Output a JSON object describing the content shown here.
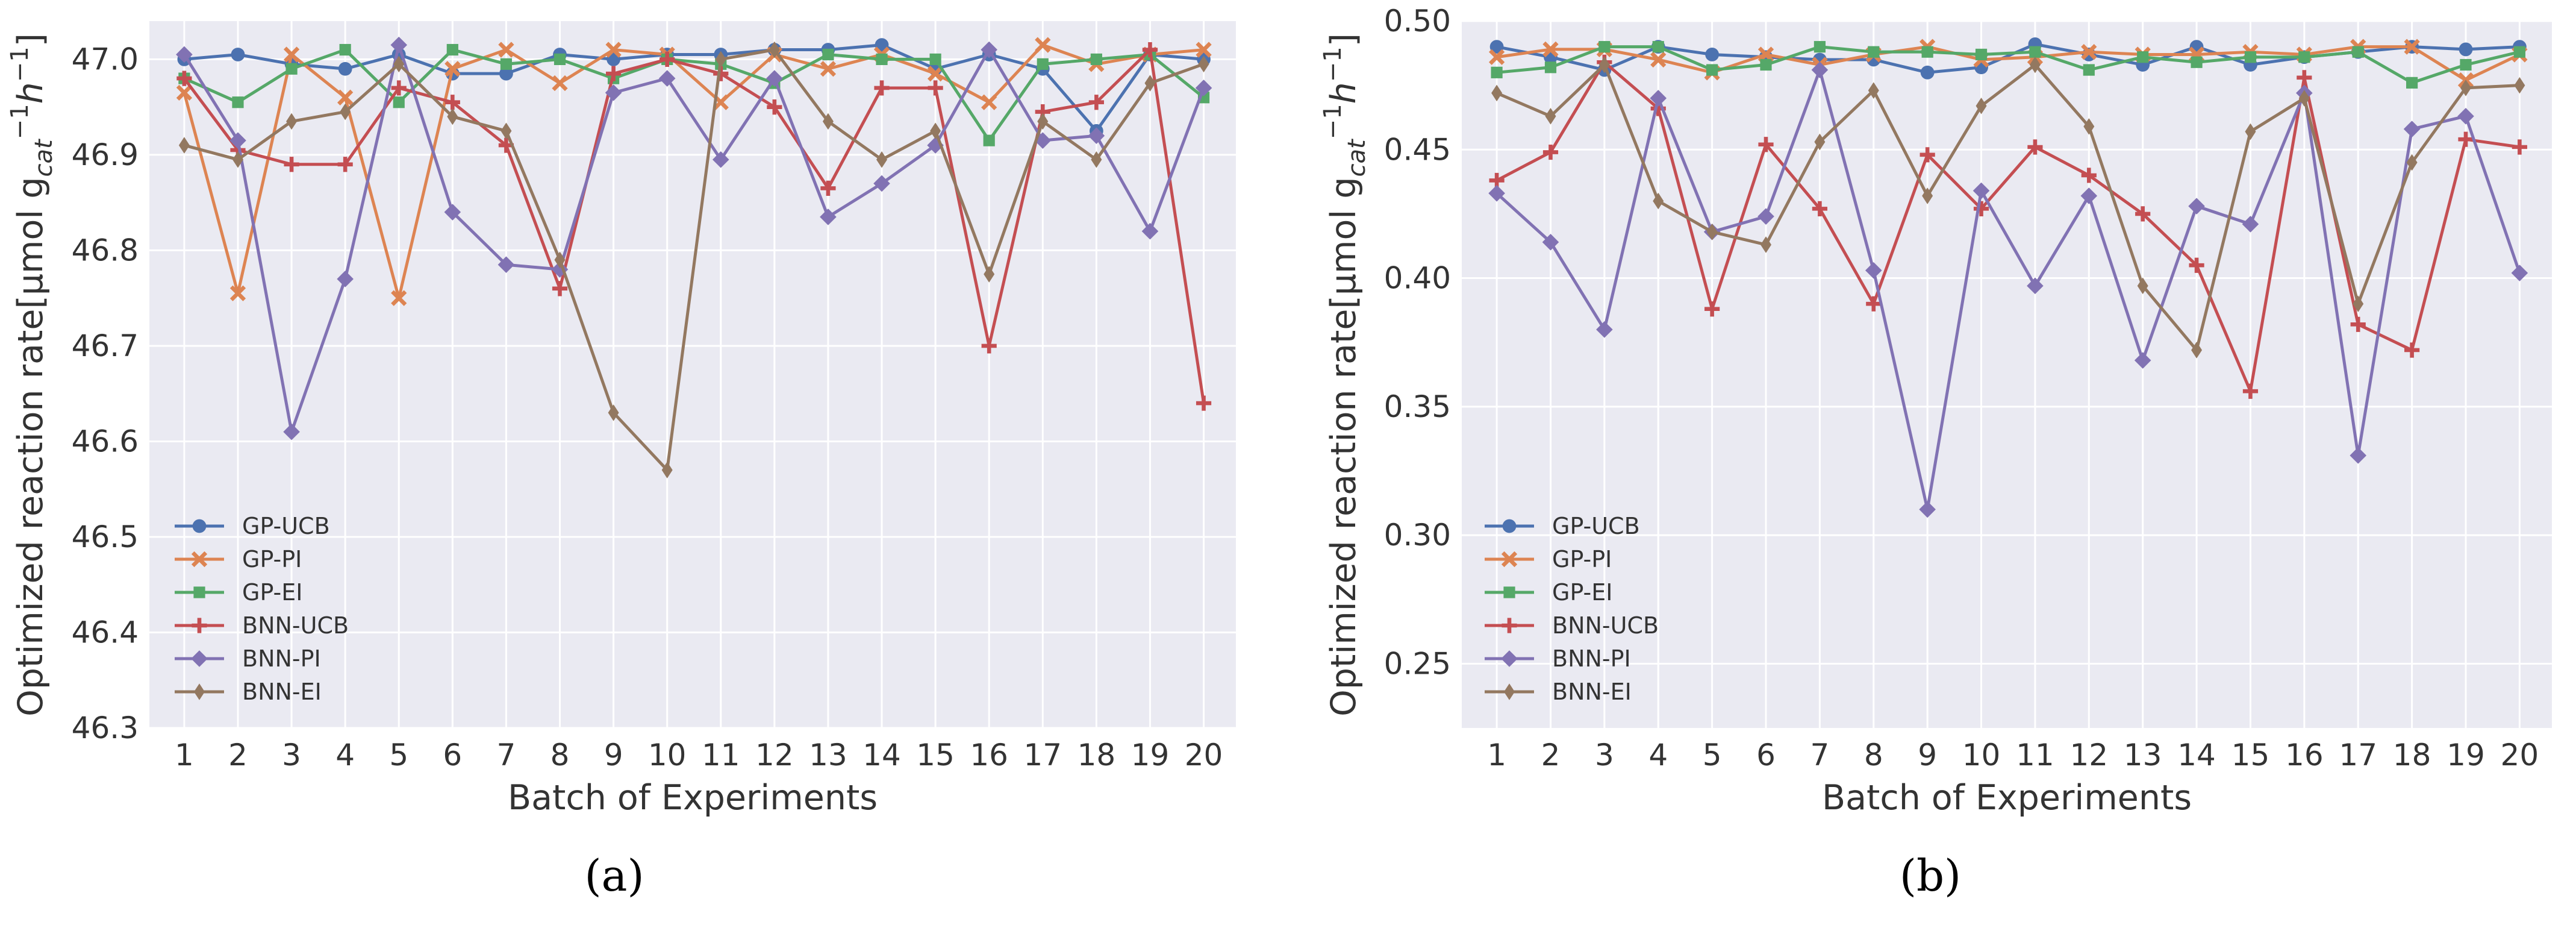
{
  "colors": {
    "GP-UCB": "#4c72b0",
    "GP-PI": "#dd8452",
    "GP-EI": "#55a868",
    "BNN-UCB": "#c44e52",
    "BNN-PI": "#8172b3",
    "BNN-EI": "#937860",
    "plot_background": "#eaeaf2",
    "grid": "#ffffff",
    "text": "#333333"
  },
  "chart_data": [
    {
      "type": "line",
      "panel_label": "(a)",
      "title": "",
      "xlabel": "Batch of Experiments",
      "ylabel": "Optimized reaction rate[μmol g_cat^-1 h^-1]",
      "ylabel_parts": {
        "main": "Optimized reaction rate[μmol g",
        "sub": "cat",
        "sup1": "−1",
        "h": "h",
        "sup2": "−1",
        "close": "]"
      },
      "ylim": [
        46.3,
        47.04
      ],
      "yticks": [
        "46.3",
        "46.4",
        "46.5",
        "46.6",
        "46.7",
        "46.8",
        "46.9",
        "47.0"
      ],
      "x": [
        1,
        2,
        3,
        4,
        5,
        6,
        7,
        8,
        9,
        10,
        11,
        12,
        13,
        14,
        15,
        16,
        17,
        18,
        19,
        20
      ],
      "legend_position": "lower-left",
      "series": [
        {
          "name": "GP-UCB",
          "marker": "circle",
          "values": [
            47.0,
            47.005,
            46.995,
            46.99,
            47.005,
            46.985,
            46.985,
            47.005,
            47.0,
            47.005,
            47.005,
            47.01,
            47.01,
            47.015,
            46.99,
            47.005,
            46.99,
            46.925,
            47.005,
            47.0
          ]
        },
        {
          "name": "GP-PI",
          "marker": "x",
          "values": [
            46.965,
            46.755,
            47.005,
            46.96,
            46.75,
            46.99,
            47.01,
            46.975,
            47.01,
            47.005,
            46.955,
            47.005,
            46.99,
            47.005,
            46.985,
            46.955,
            47.015,
            46.995,
            47.005,
            47.01
          ]
        },
        {
          "name": "GP-EI",
          "marker": "square",
          "values": [
            46.98,
            46.955,
            46.99,
            47.01,
            46.955,
            47.01,
            46.995,
            47.0,
            46.98,
            47.0,
            46.995,
            46.975,
            47.005,
            47.0,
            47.0,
            46.915,
            46.995,
            47.0,
            47.005,
            46.96
          ]
        },
        {
          "name": "BNN-UCB",
          "marker": "plus",
          "values": [
            46.98,
            46.905,
            46.89,
            46.89,
            46.97,
            46.955,
            46.91,
            46.76,
            46.985,
            47.0,
            46.985,
            46.95,
            46.865,
            46.97,
            46.97,
            46.7,
            46.945,
            46.955,
            47.01,
            46.64
          ]
        },
        {
          "name": "BNN-PI",
          "marker": "diamond",
          "values": [
            47.005,
            46.915,
            46.61,
            46.77,
            47.015,
            46.84,
            46.785,
            46.78,
            46.965,
            46.98,
            46.895,
            46.98,
            46.835,
            46.87,
            46.91,
            47.01,
            46.915,
            46.92,
            46.82,
            46.97
          ]
        },
        {
          "name": "BNN-EI",
          "marker": "thin_diamond",
          "values": [
            46.91,
            46.895,
            46.935,
            46.945,
            46.995,
            46.94,
            46.925,
            46.79,
            46.63,
            46.57,
            47.0,
            47.01,
            46.935,
            46.895,
            46.925,
            46.775,
            46.935,
            46.895,
            46.975,
            46.995
          ]
        }
      ]
    },
    {
      "type": "line",
      "panel_label": "(b)",
      "title": "",
      "xlabel": "Batch of Experiments",
      "ylabel": "Optimized reaction rate[μmol g_cat^-1 h^-1]",
      "ylabel_parts": {
        "main": "Optimized reaction rate[μmol g",
        "sub": "cat",
        "sup1": "−1",
        "h": "h",
        "sup2": "−1",
        "close": "]"
      },
      "ylim": [
        0.225,
        0.5
      ],
      "yticks": [
        "0.25",
        "0.30",
        "0.35",
        "0.40",
        "0.45",
        "0.50"
      ],
      "x": [
        1,
        2,
        3,
        4,
        5,
        6,
        7,
        8,
        9,
        10,
        11,
        12,
        13,
        14,
        15,
        16,
        17,
        18,
        19,
        20
      ],
      "legend_position": "lower-left",
      "series": [
        {
          "name": "GP-UCB",
          "marker": "circle",
          "values": [
            0.49,
            0.486,
            0.481,
            0.49,
            0.487,
            0.486,
            0.485,
            0.485,
            0.48,
            0.482,
            0.491,
            0.487,
            0.483,
            0.49,
            0.483,
            0.486,
            0.488,
            0.49,
            0.489,
            0.49
          ]
        },
        {
          "name": "GP-PI",
          "marker": "x",
          "values": [
            0.486,
            0.489,
            0.489,
            0.485,
            0.48,
            0.487,
            0.483,
            0.487,
            0.49,
            0.485,
            0.486,
            0.488,
            0.487,
            0.487,
            0.488,
            0.487,
            0.49,
            0.49,
            0.477,
            0.487
          ]
        },
        {
          "name": "GP-EI",
          "marker": "square",
          "values": [
            0.48,
            0.482,
            0.49,
            0.49,
            0.481,
            0.483,
            0.49,
            0.488,
            0.488,
            0.487,
            0.488,
            0.481,
            0.486,
            0.484,
            0.486,
            0.486,
            0.488,
            0.476,
            0.483,
            0.488
          ]
        },
        {
          "name": "BNN-UCB",
          "marker": "plus",
          "values": [
            0.438,
            0.449,
            0.484,
            0.466,
            0.388,
            0.452,
            0.427,
            0.39,
            0.448,
            0.427,
            0.451,
            0.44,
            0.425,
            0.405,
            0.356,
            0.478,
            0.382,
            0.372,
            0.454,
            0.451
          ]
        },
        {
          "name": "BNN-PI",
          "marker": "diamond",
          "values": [
            0.433,
            0.414,
            0.38,
            0.47,
            0.418,
            0.424,
            0.481,
            0.403,
            0.31,
            0.434,
            0.397,
            0.432,
            0.368,
            0.428,
            0.421,
            0.472,
            0.331,
            0.458,
            0.463,
            0.402
          ]
        },
        {
          "name": "BNN-EI",
          "marker": "thin_diamond",
          "values": [
            0.472,
            0.463,
            0.483,
            0.43,
            0.418,
            0.413,
            0.453,
            0.473,
            0.432,
            0.467,
            0.483,
            0.459,
            0.397,
            0.372,
            0.457,
            0.47,
            0.39,
            0.445,
            0.474,
            0.475
          ]
        }
      ]
    }
  ]
}
